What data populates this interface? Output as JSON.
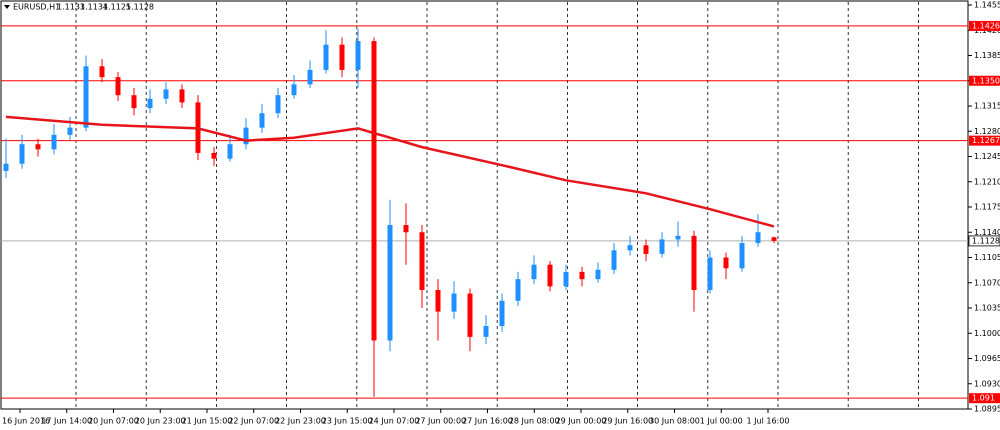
{
  "chart_data": {
    "type": "candlestick",
    "title": "EURUSD,H1",
    "x_labels": [
      "16 Jun 2016",
      "17 Jun 14:00",
      "20 Jun 07:00",
      "20 Jun 23:00",
      "21 Jun 15:00",
      "22 Jun 07:00",
      "22 Jun 23:00",
      "23 Jun 15:00",
      "24 Jun 07:00",
      "27 Jun 00:00",
      "27 Jun 16:00",
      "28 Jun 08:00",
      "29 Jun 00:00",
      "29 Jun 16:00",
      "30 Jun 08:00",
      "1 Jul 00:00",
      "1 Jul 16:00"
    ],
    "ylim": [
      1.0895,
      1.1455
    ],
    "yticks": [
      1.1455,
      {
        "value": 1.142,
        "label": "1.1420"
      },
      1.1385,
      {
        "value": 1.135,
        "label": "1.1350"
      },
      1.1315,
      {
        "value": 1.128,
        "label": "1.1280"
      },
      1.1245,
      {
        "value": 1.121,
        "label": "1.1210"
      },
      1.1175,
      {
        "value": 1.114,
        "label": "1.1140"
      },
      1.1105,
      {
        "value": 1.107,
        "label": "1.1070"
      },
      1.1035,
      {
        "value": 1.1,
        "label": "1.1000"
      },
      1.0965,
      {
        "value": 1.093,
        "label": "1.0930"
      },
      1.0895
    ],
    "grid": true,
    "candles": {
      "color_up": "#1e90ff",
      "color_down": "#ff0000",
      "open": [
        1.1225,
        1.1235,
        1.1262,
        1.1255,
        1.1275,
        1.1285,
        1.137,
        1.1355,
        1.133,
        1.1312,
        1.1325,
        1.1338,
        1.132,
        1.125,
        1.1242,
        1.1262,
        1.1285,
        1.1305,
        1.133,
        1.1345,
        1.1365,
        1.14,
        1.1365,
        1.1405,
        1.099,
        1.115,
        1.114,
        1.106,
        1.103,
        1.1055,
        1.0995,
        1.101,
        1.1045,
        1.1075,
        1.1095,
        1.1065,
        1.1085,
        1.1075,
        1.1088,
        1.1115,
        1.1122,
        1.111,
        1.113,
        1.1135,
        1.106,
        1.1105,
        1.109,
        1.1125,
        1.1133
      ],
      "high": [
        1.127,
        1.1275,
        1.127,
        1.129,
        1.13,
        1.1385,
        1.138,
        1.1362,
        1.134,
        1.1338,
        1.1348,
        1.1345,
        1.133,
        1.1258,
        1.1275,
        1.1298,
        1.1318,
        1.134,
        1.1358,
        1.1378,
        1.142,
        1.141,
        1.1422,
        1.141,
        1.1185,
        1.118,
        1.115,
        1.1075,
        1.1072,
        1.1062,
        1.1025,
        1.1055,
        1.1085,
        1.1108,
        1.11,
        1.1095,
        1.1092,
        1.1098,
        1.1125,
        1.1135,
        1.113,
        1.114,
        1.1155,
        1.1142,
        1.1115,
        1.1112,
        1.1135,
        1.1165,
        1.1134
      ],
      "low": [
        1.1215,
        1.1228,
        1.1245,
        1.1248,
        1.1268,
        1.128,
        1.1348,
        1.1322,
        1.1302,
        1.1305,
        1.1318,
        1.1312,
        1.124,
        1.1232,
        1.1238,
        1.1255,
        1.1278,
        1.1298,
        1.1325,
        1.134,
        1.136,
        1.1355,
        1.134,
        1.0912,
        1.0975,
        1.1095,
        1.1035,
        1.099,
        1.102,
        1.0975,
        1.0985,
        1.1002,
        1.1038,
        1.1068,
        1.1058,
        1.106,
        1.1065,
        1.107,
        1.1082,
        1.1108,
        1.11,
        1.1105,
        1.112,
        1.103,
        1.1055,
        1.1075,
        1.1085,
        1.112,
        1.1125
      ],
      "close": [
        1.1235,
        1.1262,
        1.1255,
        1.1275,
        1.1285,
        1.137,
        1.1355,
        1.133,
        1.1312,
        1.1325,
        1.1338,
        1.132,
        1.125,
        1.1242,
        1.1262,
        1.1285,
        1.1305,
        1.133,
        1.1345,
        1.1365,
        1.14,
        1.1365,
        1.1405,
        1.099,
        1.115,
        1.114,
        1.106,
        1.103,
        1.1055,
        1.0995,
        1.101,
        1.1045,
        1.1075,
        1.1095,
        1.1065,
        1.1085,
        1.1075,
        1.1088,
        1.1115,
        1.1122,
        1.111,
        1.113,
        1.1135,
        1.106,
        1.1105,
        1.109,
        1.1125,
        1.114,
        1.1128
      ]
    },
    "moving_average": {
      "color": "#e8141b",
      "index": [
        0,
        6,
        12,
        15,
        18,
        22,
        26,
        31,
        35,
        40,
        44,
        48
      ],
      "values": [
        1.13,
        1.1289,
        1.1284,
        1.1267,
        1.1271,
        1.1284,
        1.1258,
        1.1233,
        1.1212,
        1.1194,
        1.1172,
        1.1148
      ]
    },
    "levels": [
      1.1426,
      {
        "value": 1.135,
        "label": "1.1350"
      },
      1.1267,
      1.091
    ],
    "level_color": "#ff0000"
  }
}
